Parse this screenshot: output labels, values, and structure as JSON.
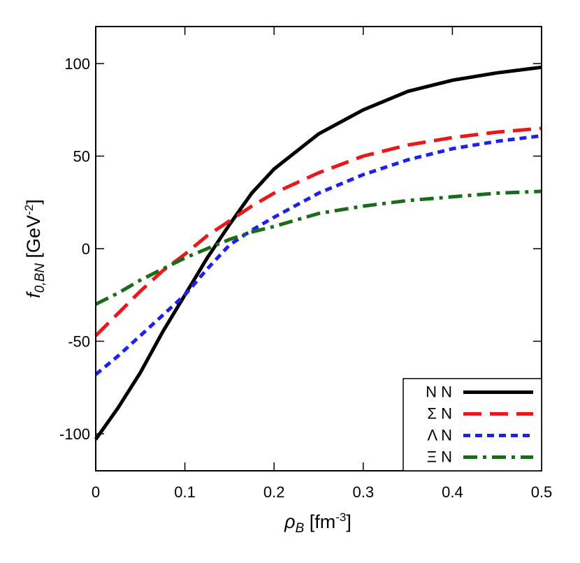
{
  "chart_data": {
    "type": "line",
    "title": "",
    "xlabel": {
      "symbol": "ρ",
      "subscript": "B",
      "unit_prefix": " [fm",
      "unit_sup": "-3",
      "unit_suffix": "]"
    },
    "ylabel": {
      "symbol": "f",
      "subscript": "0,BN",
      "unit_prefix": " [GeV",
      "unit_sup": "-2",
      "unit_suffix": "]"
    },
    "xlim": [
      0,
      0.5
    ],
    "ylim": [
      -120,
      120
    ],
    "x_ticks": [
      0,
      0.1,
      0.2,
      0.3,
      0.4,
      0.5
    ],
    "x_tick_labels": [
      "0",
      "0.1",
      "0.2",
      "0.3",
      "0.4",
      "0.5"
    ],
    "y_ticks": [
      -100,
      -50,
      0,
      50,
      100
    ],
    "y_tick_labels": [
      "-100",
      "-50",
      "0",
      "50",
      "100"
    ],
    "grid": false,
    "legend_position": "bottom-right",
    "series": [
      {
        "name": "N N",
        "color": "#000000",
        "dash": "solid",
        "x": [
          0,
          0.025,
          0.05,
          0.075,
          0.1,
          0.125,
          0.15,
          0.175,
          0.2,
          0.25,
          0.3,
          0.35,
          0.4,
          0.45,
          0.5
        ],
        "y": [
          -103,
          -86,
          -67,
          -45,
          -25,
          -5,
          13,
          30,
          43,
          62,
          75,
          85,
          91,
          95,
          98
        ]
      },
      {
        "name": "Σ N",
        "color": "#e8191c",
        "dash": "long-dash",
        "x": [
          0,
          0.025,
          0.05,
          0.075,
          0.1,
          0.125,
          0.15,
          0.175,
          0.2,
          0.25,
          0.3,
          0.35,
          0.4,
          0.45,
          0.5
        ],
        "y": [
          -47,
          -35,
          -23,
          -12,
          -3,
          7,
          15,
          23,
          30,
          41,
          50,
          56,
          60,
          63,
          65
        ]
      },
      {
        "name": "Λ N",
        "color": "#1f1ff0",
        "dash": "short-dash",
        "x": [
          0,
          0.025,
          0.05,
          0.075,
          0.1,
          0.125,
          0.15,
          0.175,
          0.2,
          0.25,
          0.3,
          0.35,
          0.4,
          0.45,
          0.5
        ],
        "y": [
          -68,
          -58,
          -47,
          -36,
          -25,
          -11,
          2,
          10,
          17,
          30,
          40,
          48,
          54,
          58,
          61
        ]
      },
      {
        "name": "Ξ N",
        "color": "#1a6b1a",
        "dash": "dash-dot",
        "x": [
          0,
          0.025,
          0.05,
          0.075,
          0.1,
          0.125,
          0.15,
          0.175,
          0.2,
          0.25,
          0.3,
          0.35,
          0.4,
          0.45,
          0.5
        ],
        "y": [
          -30,
          -24,
          -17,
          -11,
          -5,
          0,
          5,
          9,
          12,
          19,
          23,
          26,
          28,
          30,
          31
        ]
      }
    ]
  }
}
